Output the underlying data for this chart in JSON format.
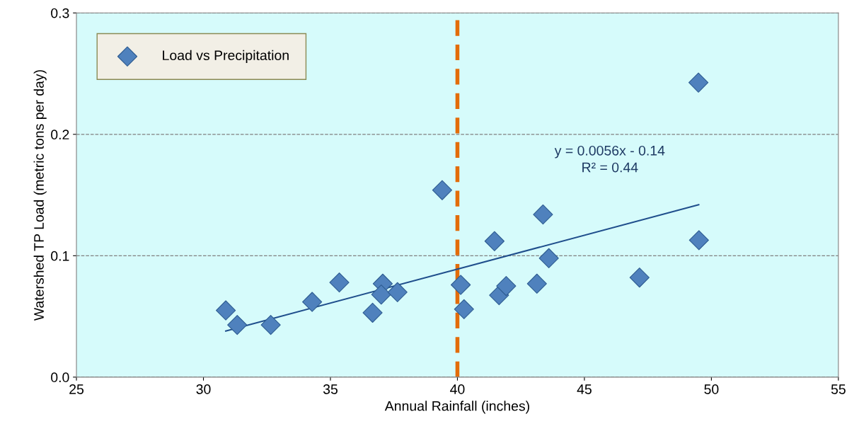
{
  "chart_data": {
    "type": "scatter",
    "xlabel": "Annual Rainfall (inches)",
    "ylabel": "Watershed TP Load (metric tons per day)",
    "xlim": [
      25,
      55
    ],
    "xticks": [
      25,
      30,
      35,
      40,
      45,
      50,
      55
    ],
    "ylim": [
      0,
      0.3
    ],
    "yticks": [
      {
        "value": 0,
        "label": "0.0"
      },
      0.1,
      0.2,
      0.3
    ],
    "grid": "y",
    "legend": "top left",
    "series": [
      {
        "name": "Load vs Precipitation",
        "marker": "diamond",
        "color": "#4f81bd",
        "x": [
          30.88,
          31.33,
          32.65,
          34.28,
          35.35,
          36.66,
          37.06,
          37.0,
          37.64,
          39.4,
          40.13,
          40.26,
          41.46,
          41.64,
          41.92,
          43.13,
          43.37,
          43.6,
          47.17,
          49.49,
          49.51
        ],
        "values": [
          0.055,
          0.043,
          0.043,
          0.062,
          0.078,
          0.053,
          0.077,
          0.068,
          0.07,
          0.154,
          0.076,
          0.056,
          0.112,
          0.0675,
          0.075,
          0.077,
          0.134,
          0.098,
          0.082,
          0.2426,
          0.1128
        ]
      },
      {
        "type": "line",
        "marker": "none",
        "color": "#1f4e8c",
        "line_style": "solid",
        "x": [
          30.88,
          49.5
        ],
        "values": [
          0.038,
          0.142
        ]
      }
    ],
    "ref_lines": [
      {
        "axis": "x",
        "value": 40,
        "color": "#e36c09",
        "line_style": "dashed"
      }
    ],
    "annotations": [
      "y = 0.0056x - 0.14\nR² = 0.44"
    ]
  }
}
